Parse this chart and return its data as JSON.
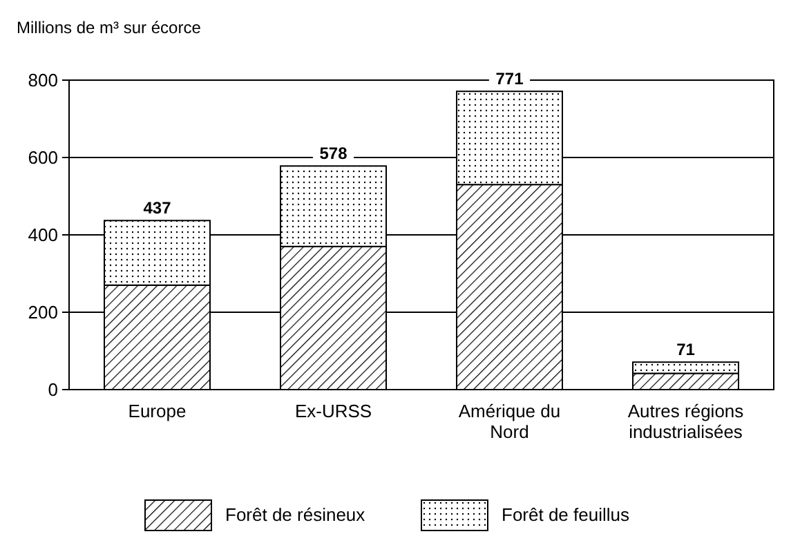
{
  "chart_data": {
    "type": "bar",
    "stacked": true,
    "ylabel": "Millions de m³ sur écorce",
    "categories": [
      "Europe",
      "Ex-URSS",
      "Amérique du Nord",
      "Autres régions industrialisées"
    ],
    "series": [
      {
        "name": "Forêt de résineux",
        "color": "#000000",
        "values": [
          270,
          370,
          530,
          42
        ]
      },
      {
        "name": "Forêt de feuillus",
        "color": "#000000",
        "values": [
          167,
          208,
          241,
          29
        ]
      }
    ],
    "totals": [
      "437",
      "578",
      "771",
      "71"
    ],
    "ylim": [
      0,
      800
    ],
    "yticks": [
      0,
      200,
      400,
      600,
      800
    ],
    "grid": "y",
    "legend": "bottom"
  }
}
